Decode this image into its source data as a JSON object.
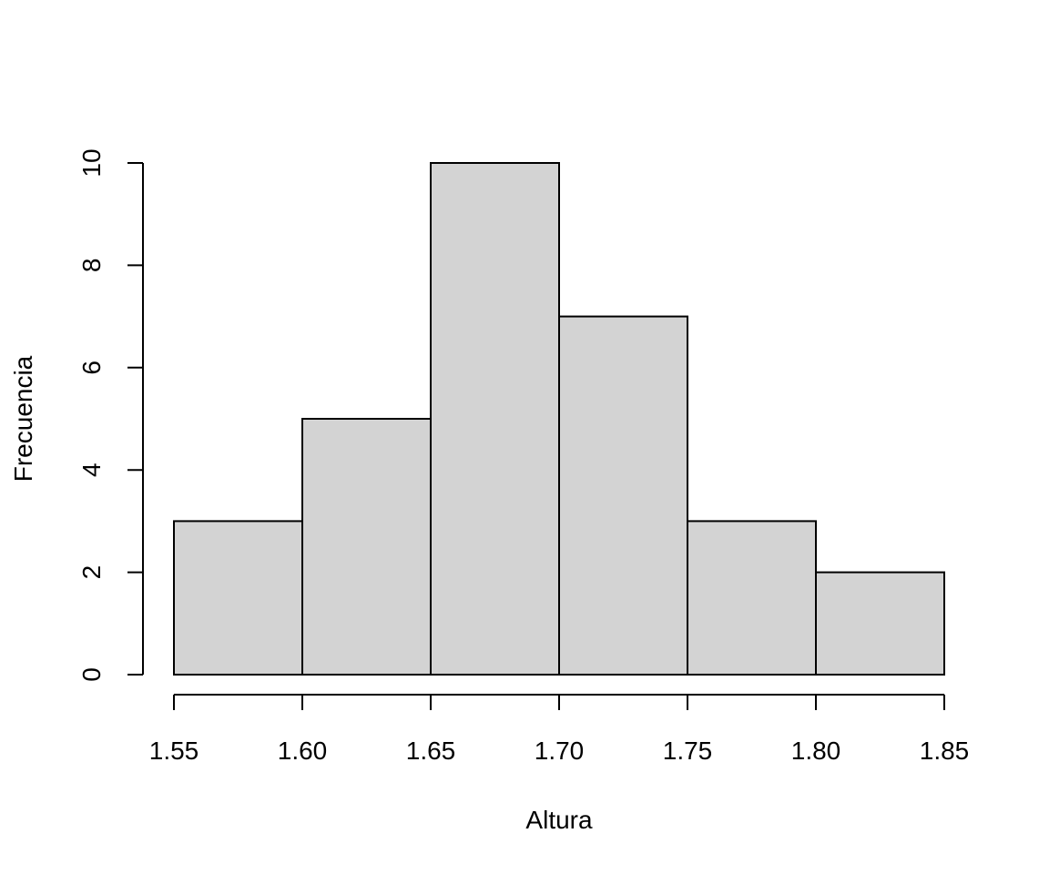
{
  "chart_data": {
    "type": "bar",
    "title": "",
    "xlabel": "Altura",
    "ylabel": "Frecuencia",
    "bins": [
      {
        "start": 1.55,
        "end": 1.6,
        "count": 3
      },
      {
        "start": 1.6,
        "end": 1.65,
        "count": 5
      },
      {
        "start": 1.65,
        "end": 1.7,
        "count": 10
      },
      {
        "start": 1.7,
        "end": 1.75,
        "count": 7
      },
      {
        "start": 1.75,
        "end": 1.8,
        "count": 3
      },
      {
        "start": 1.8,
        "end": 1.85,
        "count": 2
      }
    ],
    "x_ticks": [
      1.55,
      1.6,
      1.65,
      1.7,
      1.75,
      1.8,
      1.85
    ],
    "x_tick_labels": [
      "1.55",
      "1.60",
      "1.65",
      "1.70",
      "1.75",
      "1.80",
      "1.85"
    ],
    "y_ticks": [
      0,
      2,
      4,
      6,
      8,
      10
    ],
    "y_tick_labels": [
      "0",
      "2",
      "4",
      "6",
      "8",
      "10"
    ],
    "xlim": [
      1.55,
      1.85
    ],
    "ylim": [
      0,
      10
    ],
    "grid": false,
    "colors": {
      "bar_fill": "#d3d3d3",
      "bar_stroke": "#000000",
      "axis": "#000000"
    }
  }
}
